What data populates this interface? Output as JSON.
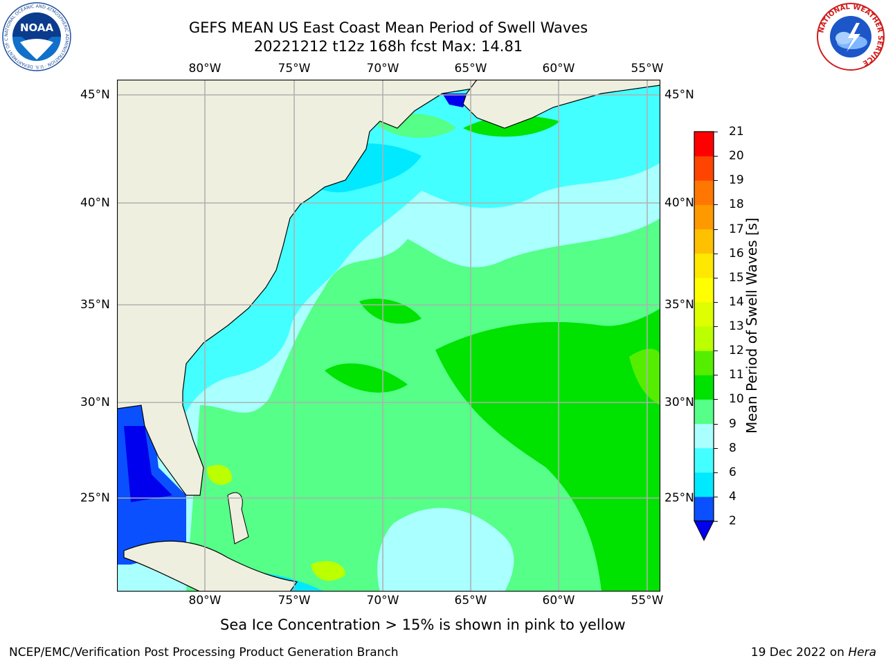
{
  "title": {
    "line1": "GEFS MEAN US East Coast Mean Period of Swell Waves",
    "line2": "20221212 t12z 168h fcst   Max: 14.81"
  },
  "map": {
    "lon_ticks": [
      "80°W",
      "75°W",
      "70°W",
      "65°W",
      "60°W",
      "55°W"
    ],
    "lat_ticks": [
      "45°N",
      "40°N",
      "35°N",
      "30°N",
      "25°N"
    ],
    "colors": {
      "land": "#efefdf",
      "grid": "#b0b0b0",
      "coast": "#000000"
    }
  },
  "colorbar": {
    "label": "Mean Period of Swell Waves [s]",
    "ticks": [
      "2",
      "4",
      "6",
      "8",
      "9",
      "10",
      "11",
      "12",
      "13",
      "14",
      "15",
      "16",
      "17",
      "18",
      "19",
      "20",
      "21"
    ],
    "colors": [
      "#0a50ff",
      "#00e9ff",
      "#44ffff",
      "#aaffff",
      "#55ff88",
      "#00e200",
      "#55ee00",
      "#bbff00",
      "#ddff00",
      "#ffff00",
      "#ffe800",
      "#ffc000",
      "#ff9900",
      "#ff7700",
      "#ff4400",
      "#ff0000"
    ],
    "under_color": "#0000ee"
  },
  "logos": {
    "noaa_text": "NOAA",
    "noaa_ring_text": "NATIONAL OCEANIC AND ATMOSPHERIC ADMINISTRATION · U.S. DEPARTMENT OF COMMERCE",
    "nws_ring_text": "NATIONAL WEATHER SERVICE"
  },
  "caption": "Sea Ice Concentration > 15% is shown in pink to yellow",
  "footer": {
    "left": "NCEP/EMC/Verification Post Processing Product Generation Branch",
    "right_prefix": "19 Dec 2022 on ",
    "right_host": "Hera"
  }
}
